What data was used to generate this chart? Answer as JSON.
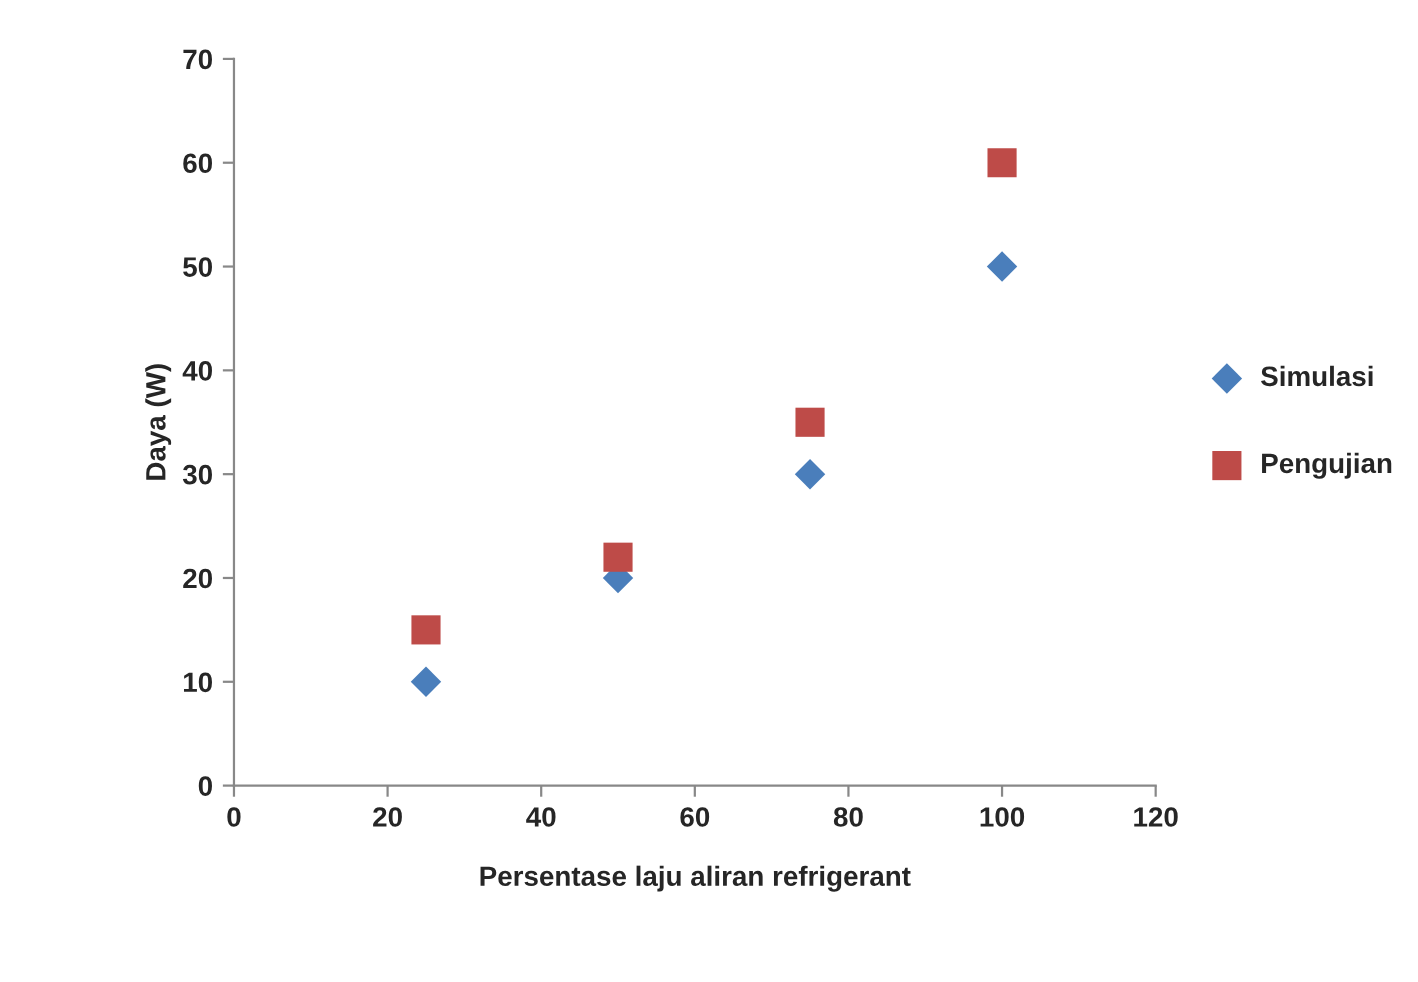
{
  "chart_data": {
    "type": "scatter",
    "xlabel": "Persentase laju aliran refrigerant",
    "ylabel": "Daya (W)",
    "x": [
      25,
      50,
      75,
      100
    ],
    "series": [
      {
        "name": "Simulasi",
        "color": "#4a7ebb",
        "marker": "diamond",
        "values": [
          10,
          20,
          30,
          50
        ]
      },
      {
        "name": "Pengujian",
        "color": "#be4b48",
        "marker": "square",
        "values": [
          15,
          22,
          35,
          60
        ]
      }
    ],
    "xlim": [
      0,
      120
    ],
    "xticks": [
      0,
      20,
      40,
      60,
      80,
      100,
      120
    ],
    "ylim": [
      0,
      70
    ],
    "yticks": [
      0,
      10,
      20,
      30,
      40,
      50,
      60,
      70
    ],
    "grid": false,
    "legend": "right"
  }
}
